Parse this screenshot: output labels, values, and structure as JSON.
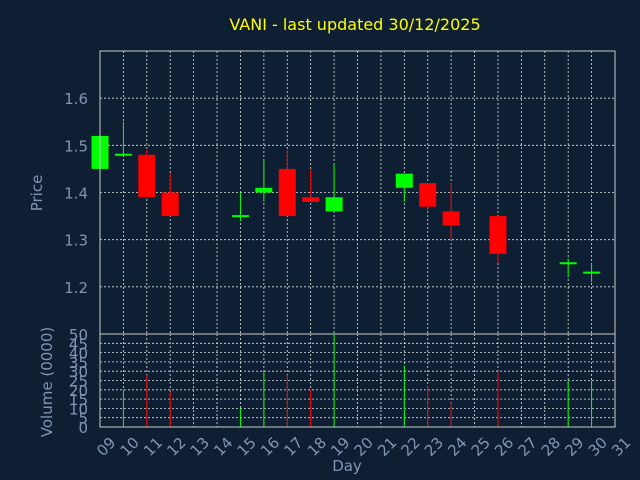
{
  "chart_data": [
    {
      "type": "candlestick",
      "title": "VANI - last updated 30/12/2025",
      "ylabel": "Price",
      "xlabel": "",
      "ylim": [
        1.1,
        1.7
      ],
      "yticks": [
        "1.2",
        "1.3",
        "1.4",
        "1.5",
        "1.6"
      ],
      "grid": true,
      "up_color": "#00ff00",
      "down_color": "#ff0000",
      "candles": [
        {
          "day": "09",
          "open": 1.45,
          "high": 1.52,
          "low": 1.45,
          "close": 1.52
        },
        {
          "day": "10",
          "open": 1.48,
          "high": 1.55,
          "low": 1.48,
          "close": 1.48
        },
        {
          "day": "11",
          "open": 1.48,
          "high": 1.49,
          "low": 1.39,
          "close": 1.39
        },
        {
          "day": "12",
          "open": 1.4,
          "high": 1.44,
          "low": 1.35,
          "close": 1.35
        },
        {
          "day": "15",
          "open": 1.35,
          "high": 1.4,
          "low": 1.34,
          "close": 1.35
        },
        {
          "day": "16",
          "open": 1.4,
          "high": 1.47,
          "low": 1.38,
          "close": 1.41
        },
        {
          "day": "17",
          "open": 1.45,
          "high": 1.49,
          "low": 1.35,
          "close": 1.35
        },
        {
          "day": "18",
          "open": 1.39,
          "high": 1.45,
          "low": 1.38,
          "close": 1.38
        },
        {
          "day": "19",
          "open": 1.36,
          "high": 1.46,
          "low": 1.36,
          "close": 1.39
        },
        {
          "day": "22",
          "open": 1.41,
          "high": 1.44,
          "low": 1.38,
          "close": 1.44
        },
        {
          "day": "23",
          "open": 1.42,
          "high": 1.42,
          "low": 1.36,
          "close": 1.37
        },
        {
          "day": "24",
          "open": 1.36,
          "high": 1.42,
          "low": 1.3,
          "close": 1.33
        },
        {
          "day": "26",
          "open": 1.35,
          "high": 1.35,
          "low": 1.25,
          "close": 1.27
        },
        {
          "day": "29",
          "open": 1.25,
          "high": 1.26,
          "low": 1.22,
          "close": 1.25
        },
        {
          "day": "30",
          "open": 1.23,
          "high": 1.25,
          "low": 1.21,
          "close": 1.23
        }
      ]
    },
    {
      "type": "bar",
      "title": "",
      "ylabel": "Volume (0000)",
      "xlabel": "Day",
      "ylim": [
        0,
        50
      ],
      "yticks": [
        "0",
        "5",
        "10",
        "15",
        "20",
        "25",
        "30",
        "35",
        "40",
        "45",
        "50"
      ],
      "grid": true,
      "categories": [
        "09",
        "10",
        "11",
        "12",
        "13",
        "14",
        "15",
        "16",
        "17",
        "18",
        "19",
        "20",
        "21",
        "22",
        "23",
        "24",
        "25",
        "26",
        "27",
        "28",
        "29",
        "30",
        "31"
      ],
      "volumes": [
        {
          "day": "10",
          "value": 20,
          "direction": "up"
        },
        {
          "day": "11",
          "value": 28,
          "direction": "down"
        },
        {
          "day": "12",
          "value": 19,
          "direction": "down"
        },
        {
          "day": "15",
          "value": 10,
          "direction": "up"
        },
        {
          "day": "16",
          "value": 30,
          "direction": "up"
        },
        {
          "day": "17",
          "value": 28,
          "direction": "down"
        },
        {
          "day": "18",
          "value": 20,
          "direction": "down"
        },
        {
          "day": "19",
          "value": 50,
          "direction": "up"
        },
        {
          "day": "22",
          "value": 33,
          "direction": "up"
        },
        {
          "day": "23",
          "value": 22,
          "direction": "down"
        },
        {
          "day": "24",
          "value": 13,
          "direction": "down"
        },
        {
          "day": "26",
          "value": 30,
          "direction": "down"
        },
        {
          "day": "29",
          "value": 25,
          "direction": "up"
        },
        {
          "day": "30",
          "value": 25,
          "direction": "up"
        }
      ]
    }
  ]
}
